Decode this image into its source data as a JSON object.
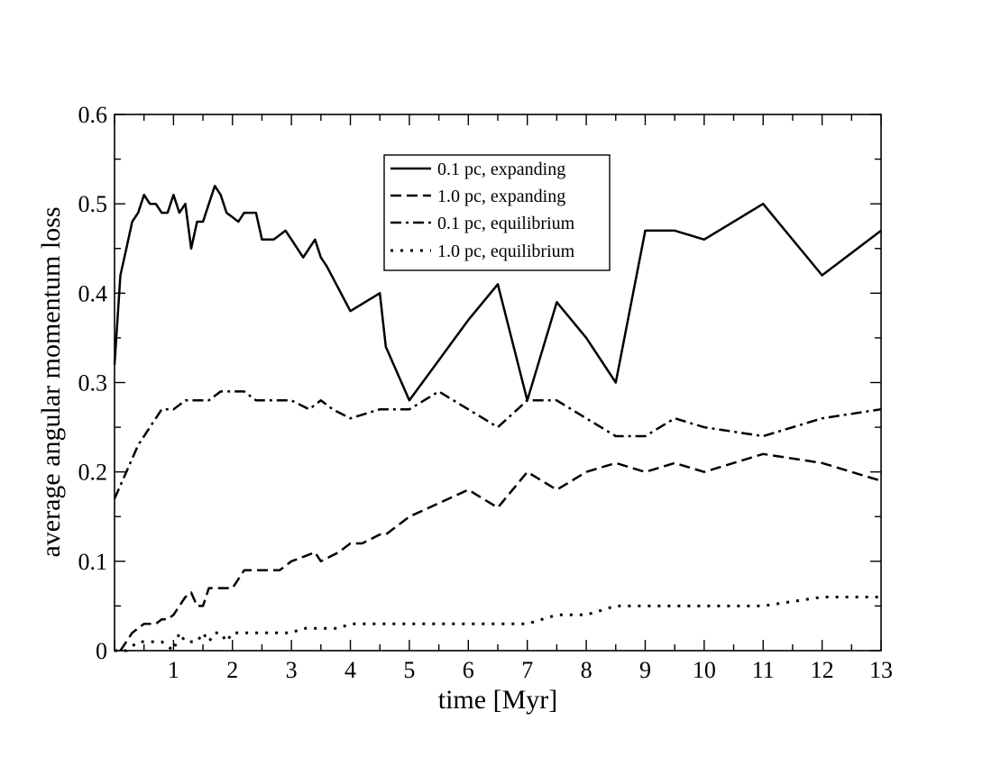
{
  "chart_data": {
    "type": "line",
    "title": "",
    "xlabel": "time [Myr]",
    "ylabel": "average angular momentum loss",
    "xlim": [
      0,
      13
    ],
    "ylim": [
      0,
      0.6
    ],
    "x_ticks": [
      1,
      2,
      3,
      4,
      5,
      6,
      7,
      8,
      9,
      10,
      11,
      12,
      13
    ],
    "x_tick_labels": [
      "1",
      "2",
      "3",
      "4",
      "5",
      "6",
      "7",
      "8",
      "9",
      "10",
      "11",
      "12",
      "13"
    ],
    "y_ticks": [
      0,
      0.1,
      0.2,
      0.3,
      0.4,
      0.5,
      0.6
    ],
    "y_tick_labels": [
      "0",
      "0.1",
      "0.2",
      "0.3",
      "0.4",
      "0.5",
      "0.6"
    ],
    "grid": false,
    "legend_position": "top-center",
    "series": [
      {
        "name": "0.1 pc, expanding",
        "style": "solid",
        "color": "#000000",
        "x": [
          0,
          0.1,
          0.2,
          0.3,
          0.4,
          0.5,
          0.6,
          0.7,
          0.8,
          0.9,
          1.0,
          1.1,
          1.2,
          1.3,
          1.4,
          1.5,
          1.6,
          1.7,
          1.8,
          1.9,
          2.0,
          2.1,
          2.2,
          2.3,
          2.4,
          2.5,
          2.6,
          2.7,
          2.8,
          2.9,
          3.0,
          3.2,
          3.4,
          3.5,
          3.6,
          4.0,
          4.5,
          4.6,
          5.0,
          5.5,
          6.0,
          6.5,
          7.0,
          7.5,
          8.0,
          8.5,
          9.0,
          9.5,
          10.0,
          11.0,
          12.0,
          13.0
        ],
        "values": [
          0.32,
          0.42,
          0.45,
          0.48,
          0.49,
          0.51,
          0.5,
          0.5,
          0.49,
          0.49,
          0.51,
          0.49,
          0.5,
          0.45,
          0.48,
          0.48,
          0.5,
          0.52,
          0.51,
          0.49,
          0.485,
          0.48,
          0.49,
          0.49,
          0.49,
          0.46,
          0.46,
          0.46,
          0.465,
          0.47,
          0.46,
          0.44,
          0.46,
          0.44,
          0.43,
          0.38,
          0.4,
          0.34,
          0.28,
          0.325,
          0.37,
          0.41,
          0.28,
          0.39,
          0.35,
          0.3,
          0.47,
          0.47,
          0.46,
          0.5,
          0.42,
          0.47
        ]
      },
      {
        "name": "1.0 pc, expanding",
        "style": "dashed",
        "color": "#000000",
        "x": [
          0.1,
          0.2,
          0.3,
          0.4,
          0.5,
          0.6,
          0.7,
          0.8,
          0.9,
          1.0,
          1.1,
          1.2,
          1.3,
          1.4,
          1.5,
          1.6,
          1.8,
          2.0,
          2.2,
          2.5,
          2.8,
          3.0,
          3.2,
          3.4,
          3.5,
          3.8,
          4.0,
          4.2,
          4.5,
          4.6,
          5.0,
          5.5,
          6.0,
          6.5,
          7.0,
          7.5,
          8.0,
          8.5,
          9.0,
          9.5,
          10.0,
          11.0,
          12.0,
          13.0
        ],
        "values": [
          0.0,
          0.01,
          0.02,
          0.025,
          0.03,
          0.03,
          0.03,
          0.035,
          0.035,
          0.04,
          0.05,
          0.06,
          0.065,
          0.05,
          0.05,
          0.07,
          0.07,
          0.07,
          0.09,
          0.09,
          0.09,
          0.1,
          0.105,
          0.11,
          0.1,
          0.11,
          0.12,
          0.12,
          0.13,
          0.13,
          0.15,
          0.165,
          0.18,
          0.16,
          0.2,
          0.18,
          0.2,
          0.21,
          0.2,
          0.21,
          0.2,
          0.22,
          0.21,
          0.19
        ]
      },
      {
        "name": "0.1 pc, equilibrium",
        "style": "dashdot",
        "color": "#000000",
        "x": [
          0,
          0.2,
          0.4,
          0.6,
          0.8,
          1.0,
          1.2,
          1.4,
          1.6,
          1.8,
          2.0,
          2.2,
          2.4,
          2.6,
          2.8,
          3.0,
          3.3,
          3.5,
          3.7,
          4.0,
          4.5,
          5.0,
          5.5,
          6.0,
          6.5,
          7.0,
          7.5,
          8.0,
          8.5,
          9.0,
          9.5,
          10.0,
          11.0,
          12.0,
          13.0
        ],
        "values": [
          0.17,
          0.2,
          0.23,
          0.25,
          0.27,
          0.27,
          0.28,
          0.28,
          0.28,
          0.29,
          0.29,
          0.29,
          0.28,
          0.28,
          0.28,
          0.28,
          0.27,
          0.28,
          0.27,
          0.26,
          0.27,
          0.27,
          0.29,
          0.27,
          0.25,
          0.28,
          0.28,
          0.26,
          0.24,
          0.24,
          0.26,
          0.25,
          0.24,
          0.26,
          0.27
        ]
      },
      {
        "name": "1.0 pc, equilibrium",
        "style": "dotted",
        "color": "#000000",
        "x": [
          0,
          0.2,
          0.4,
          0.6,
          0.8,
          1.0,
          1.1,
          1.2,
          1.3,
          1.4,
          1.5,
          1.6,
          1.7,
          1.8,
          1.9,
          2.0,
          2.2,
          2.5,
          2.8,
          3.0,
          3.2,
          3.5,
          3.8,
          4.0,
          4.5,
          5.0,
          5.5,
          6.0,
          6.5,
          7.0,
          7.5,
          8.0,
          8.5,
          9.0,
          9.5,
          10.0,
          11.0,
          12.0,
          13.0
        ],
        "values": [
          0.0,
          0.0,
          0.01,
          0.01,
          0.01,
          0.0,
          0.02,
          0.01,
          0.01,
          0.01,
          0.02,
          0.01,
          0.02,
          0.02,
          0.01,
          0.02,
          0.02,
          0.02,
          0.02,
          0.02,
          0.025,
          0.025,
          0.025,
          0.03,
          0.03,
          0.03,
          0.03,
          0.03,
          0.03,
          0.03,
          0.04,
          0.04,
          0.05,
          0.05,
          0.05,
          0.05,
          0.05,
          0.06,
          0.06
        ]
      }
    ]
  }
}
